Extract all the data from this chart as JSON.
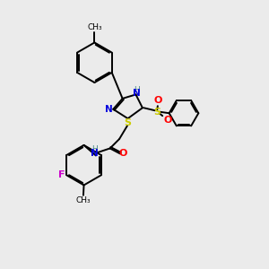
{
  "background_color": "#ebebeb",
  "colors": {
    "C": "#000000",
    "N": "#0000dd",
    "O": "#ff0000",
    "S": "#cccc00",
    "F": "#cc00cc",
    "H": "#4a8a8a"
  }
}
